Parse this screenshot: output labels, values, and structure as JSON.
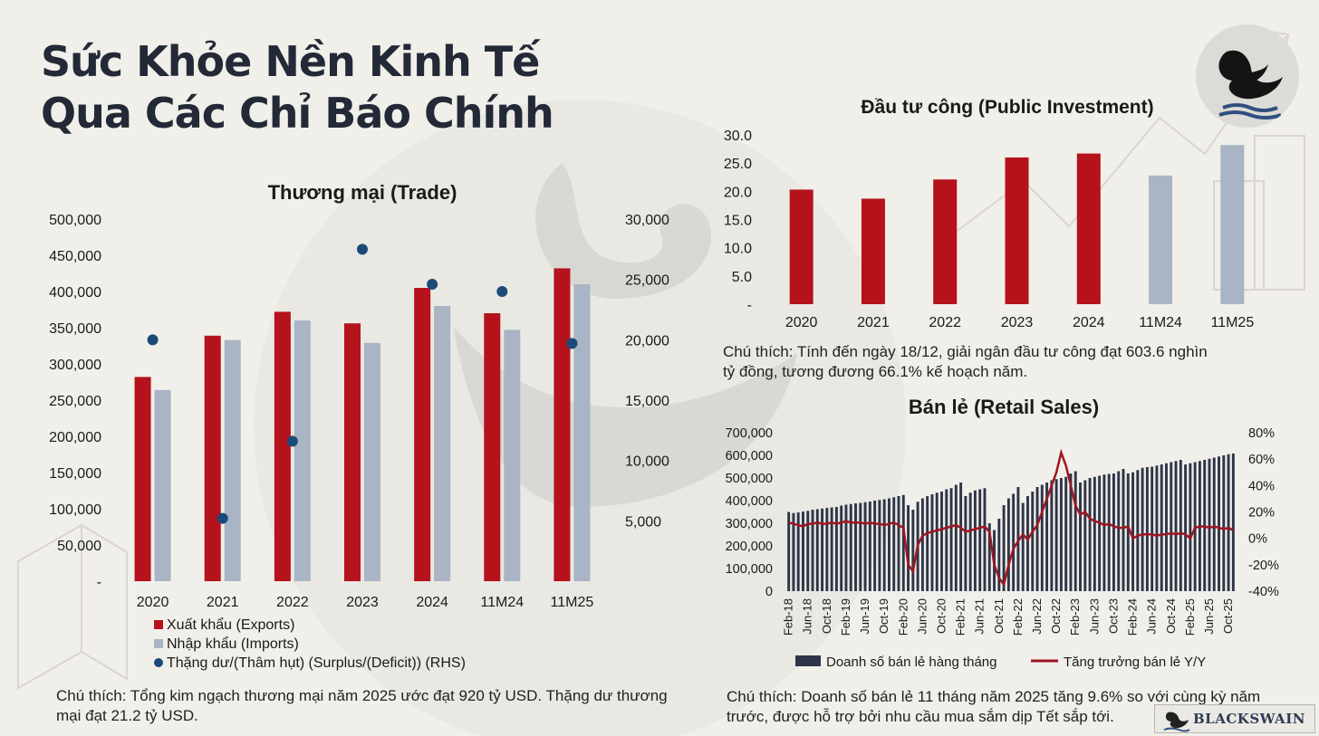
{
  "title_lines": [
    "Sức Khỏe Nền Kinh Tế",
    "Qua Các Chỉ Báo Chính"
  ],
  "brand": "BLACKSWAIN",
  "icons": {
    "logo": "black-swan-logo-icon",
    "badge": "swan-icon"
  },
  "colors": {
    "export": "#b5121b",
    "import": "#a9b4c4",
    "surplus": "#1c4a78",
    "retail_bar": "#2e3548",
    "retail_growth": "#a01521",
    "grid_text": "#1a1a1a"
  },
  "notes": {
    "trade": "Chú thích: Tổng kim ngạch thương mại năm 2025 ước đạt 920 tỷ USD. Thặng dư thương mại đạt 21.2 tỷ USD.",
    "public_investment": "Chú thích: Tính đến ngày 18/12, giải ngân đầu tư công đạt 603.6 nghìn tỷ đồng, tương đương 66.1% kế hoạch năm.",
    "retail": "Chú thích: Doanh số bán lẻ 11 tháng năm 2025 tăng 9.6% so với cùng kỳ năm trước, được hỗ trợ bởi nhu cầu mua sắm dịp Tết sắp tới."
  },
  "chart_data": [
    {
      "type": "bar",
      "title": "Thương mại (Trade)",
      "categories": [
        "2020",
        "2021",
        "2022",
        "2023",
        "2024",
        "11M24",
        "11M25"
      ],
      "series": [
        {
          "name": "Xuất khẩu (Exports)",
          "axis": "left",
          "kind": "bar",
          "values": [
            282000,
            339000,
            372000,
            356000,
            405000,
            370000,
            432000
          ]
        },
        {
          "name": "Nhập khẩu (Imports)",
          "axis": "left",
          "kind": "bar",
          "values": [
            264000,
            333000,
            360000,
            329000,
            380000,
            347000,
            410000
          ]
        },
        {
          "name": "Thặng dư/(Thâm hụt) (Surplus/(Deficit)) (RHS)",
          "axis": "right",
          "kind": "scatter",
          "values": [
            20000,
            5200,
            11600,
            27500,
            24600,
            24000,
            19700
          ]
        }
      ],
      "y_left": {
        "ylim": [
          0,
          500000
        ],
        "ticks": [
          "-",
          "50,000",
          "100,000",
          "150,000",
          "200,000",
          "250,000",
          "300,000",
          "350,000",
          "400,000",
          "450,000",
          "500,000"
        ]
      },
      "y_right": {
        "ylim": [
          0,
          30000
        ],
        "ticks": [
          "5,000",
          "10,000",
          "15,000",
          "20,000",
          "25,000",
          "30,000"
        ]
      },
      "grid": false,
      "legend_position": "bottom-left"
    },
    {
      "type": "bar",
      "title": "Đầu tư công (Public Investment)",
      "categories": [
        "2020",
        "2021",
        "2022",
        "2023",
        "2024",
        "11M24",
        "11M25"
      ],
      "values": [
        20.3,
        18.7,
        22.1,
        26.0,
        26.7,
        22.8,
        28.2
      ],
      "highlight": [
        "actual",
        "actual",
        "actual",
        "actual",
        "actual",
        "ytd",
        "ytd"
      ],
      "ylim": [
        0,
        30
      ],
      "y_ticks": [
        "-",
        "5.0",
        "10.0",
        "15.0",
        "20.0",
        "25.0",
        "30.0"
      ],
      "grid": false
    },
    {
      "type": "bar",
      "title": "Bán lẻ (Retail Sales)",
      "x_tick_labels": [
        "Feb-18",
        "Jun-18",
        "Oct-18",
        "Feb-19",
        "Jun-19",
        "Oct-19",
        "Feb-20",
        "Jun-20",
        "Oct-20",
        "Feb-21",
        "Jun-21",
        "Oct-21",
        "Feb-22",
        "Jun-22",
        "Oct-22",
        "Feb-23",
        "Jun-23",
        "Oct-23",
        "Feb-24",
        "Jun-24",
        "Oct-24",
        "Feb-25",
        "Jun-25",
        "Oct-25"
      ],
      "x_start": "2018-02",
      "x_end": "2025-11",
      "series": [
        {
          "name": "Doanh số bán lẻ hàng tháng",
          "axis": "left",
          "kind": "bar",
          "values": [
            350000,
            345000,
            348000,
            352000,
            355000,
            360000,
            362000,
            365000,
            368000,
            370000,
            372000,
            378000,
            382000,
            385000,
            388000,
            390000,
            393000,
            396000,
            400000,
            403000,
            406000,
            410000,
            415000,
            420000,
            425000,
            380000,
            360000,
            395000,
            410000,
            420000,
            428000,
            435000,
            440000,
            450000,
            455000,
            470000,
            480000,
            420000,
            435000,
            445000,
            450000,
            455000,
            300000,
            270000,
            320000,
            380000,
            410000,
            430000,
            460000,
            390000,
            420000,
            440000,
            460000,
            470000,
            480000,
            490000,
            495000,
            500000,
            505000,
            520000,
            530000,
            480000,
            490000,
            500000,
            505000,
            510000,
            515000,
            518000,
            520000,
            530000,
            540000,
            520000,
            525000,
            535000,
            545000,
            548000,
            550000,
            555000,
            560000,
            565000,
            570000,
            575000,
            580000,
            560000,
            565000,
            570000,
            575000,
            580000,
            585000,
            590000,
            595000,
            600000,
            605000,
            608000
          ]
        },
        {
          "name": "Tăng trưởng bán lẻ Y/Y",
          "axis": "right",
          "kind": "line",
          "values": [
            12,
            11,
            10,
            9,
            11,
            11,
            12,
            11,
            11,
            12,
            11,
            12,
            13,
            12,
            12,
            12,
            11,
            12,
            11,
            11,
            10,
            11,
            12,
            10,
            8,
            -20,
            -25,
            -5,
            2,
            4,
            5,
            6,
            7,
            8,
            9,
            10,
            8,
            5,
            6,
            7,
            8,
            9,
            5,
            -20,
            -30,
            -35,
            -20,
            -8,
            -2,
            3,
            -1,
            5,
            10,
            20,
            30,
            40,
            50,
            65,
            55,
            40,
            25,
            18,
            20,
            15,
            13,
            12,
            10,
            11,
            9,
            8,
            8,
            9,
            0,
            2,
            3,
            3,
            3,
            2,
            3,
            3,
            4,
            3,
            4,
            3,
            0,
            8,
            9,
            9,
            8,
            9,
            8,
            7,
            8,
            6
          ]
        }
      ],
      "y_left": {
        "ylim": [
          0,
          700000
        ],
        "ticks": [
          "0",
          "100,000",
          "200,000",
          "300,000",
          "400,000",
          "500,000",
          "600,000",
          "700,000"
        ]
      },
      "y_right": {
        "ylim": [
          -40,
          80
        ],
        "ticks": [
          "-40%",
          "-20%",
          "0%",
          "20%",
          "40%",
          "60%",
          "80%"
        ]
      },
      "grid": false,
      "legend_position": "bottom"
    }
  ]
}
